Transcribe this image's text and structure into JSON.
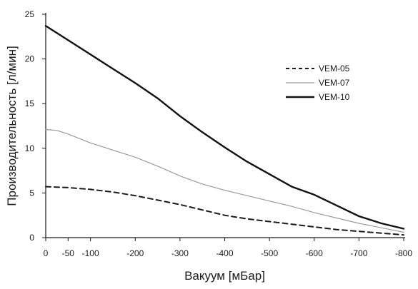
{
  "chart_data": {
    "type": "line",
    "title": "",
    "xlabel": "Вакуум [мБар]",
    "ylabel": "Производительность [л/мин]",
    "x_ticks": [
      0,
      -50,
      -100,
      -200,
      -300,
      -400,
      -500,
      -600,
      -700,
      -800
    ],
    "x_tick_labels": [
      "0",
      "-50",
      "-100",
      "-200",
      "-300",
      "-400",
      "-500",
      "-600",
      "-700",
      "-800"
    ],
    "y_ticks": [
      0,
      5,
      10,
      15,
      20,
      25
    ],
    "y_tick_labels": [
      "0",
      "5",
      "10",
      "15",
      "20",
      "25"
    ],
    "xlim": [
      0,
      -800
    ],
    "ylim": [
      0,
      25
    ],
    "grid": false,
    "legend_position": "top-right",
    "series": [
      {
        "name": "VEM-05",
        "style": "dashed",
        "color": "#1a1a1a",
        "x": [
          0,
          -50,
          -100,
          -150,
          -200,
          -250,
          -300,
          -350,
          -400,
          -450,
          -500,
          -550,
          -600,
          -650,
          -700,
          -750,
          -800
        ],
        "y": [
          5.7,
          5.6,
          5.4,
          5.1,
          4.7,
          4.2,
          3.7,
          3.1,
          2.5,
          2.1,
          1.8,
          1.5,
          1.2,
          0.9,
          0.7,
          0.5,
          0.3
        ]
      },
      {
        "name": "VEM-07",
        "style": "solid-thin",
        "color": "#9a9a9a",
        "x": [
          0,
          -25,
          -50,
          -100,
          -150,
          -200,
          -250,
          -300,
          -350,
          -400,
          -450,
          -500,
          -550,
          -600,
          -650,
          -700,
          -750,
          -800
        ],
        "y": [
          12.1,
          12.0,
          11.6,
          10.6,
          9.8,
          9.0,
          8.0,
          6.9,
          6.0,
          5.3,
          4.7,
          4.1,
          3.5,
          2.8,
          2.2,
          1.6,
          1.1,
          0.6
        ]
      },
      {
        "name": "VEM-10",
        "style": "solid-thick",
        "color": "#111111",
        "x": [
          0,
          -50,
          -100,
          -150,
          -200,
          -250,
          -300,
          -350,
          -400,
          -450,
          -500,
          -550,
          -600,
          -650,
          -700,
          -750,
          -800
        ],
        "y": [
          23.7,
          22.1,
          20.5,
          18.9,
          17.3,
          15.6,
          13.6,
          11.8,
          10.1,
          8.5,
          7.1,
          5.7,
          4.8,
          3.6,
          2.4,
          1.6,
          1.0
        ]
      }
    ]
  }
}
